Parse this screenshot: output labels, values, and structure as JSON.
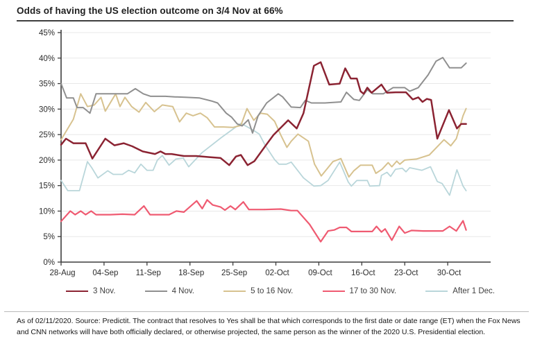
{
  "title": "Odds of having the US election outcome on 3/4 Nov at 66%",
  "footer": {
    "text": "As of 02/11/2020. Source: Predictit. The contract that resolves to Yes shall be that which corresponds to the first date or date range (ET) when the Fox News and CNN networks will have both officially declared, or otherwise projected, the same person as the winner of the 2020 U.S. Presidential election."
  },
  "chart_data": {
    "type": "line",
    "title": "Odds of having the US election outcome on 3/4 Nov at 66%",
    "xlabel": "",
    "ylabel": "",
    "grid": "horizontal",
    "legend_position": "bottom",
    "x_axis": {
      "day_range": [
        0,
        70
      ],
      "tick_days": [
        0,
        7,
        14,
        21,
        28,
        35,
        42,
        49,
        56,
        63
      ],
      "tick_labels": [
        "28-Aug",
        "04-Sep",
        "11-Sep",
        "18-Sep",
        "25-Sep",
        "02-Oct",
        "09-Oct",
        "16-Oct",
        "23-Oct",
        "30-Oct"
      ]
    },
    "y_axis": {
      "min": 0,
      "max": 45,
      "step": 5,
      "format": "percent"
    },
    "series": [
      {
        "id": "dec1",
        "label": "After 1 Dec.",
        "color": "#b9d6da",
        "width": 1.8,
        "points": [
          [
            0,
            16
          ],
          [
            1.1,
            14
          ],
          [
            3,
            14
          ],
          [
            4.3,
            19.7
          ],
          [
            5,
            18.5
          ],
          [
            6,
            16.5
          ],
          [
            7.6,
            17.9
          ],
          [
            8.5,
            17.2
          ],
          [
            10,
            17.2
          ],
          [
            11,
            18
          ],
          [
            12,
            17.5
          ],
          [
            13,
            19.2
          ],
          [
            14,
            18
          ],
          [
            15,
            18
          ],
          [
            15.7,
            20
          ],
          [
            16.5,
            20.9
          ],
          [
            17.6,
            19
          ],
          [
            18.7,
            20.2
          ],
          [
            19.9,
            20.4
          ],
          [
            20.8,
            18.7
          ],
          [
            23,
            21.5
          ],
          [
            26.1,
            24.4
          ],
          [
            29.3,
            27.2
          ],
          [
            31.4,
            25.8
          ],
          [
            32.3,
            25.1
          ],
          [
            33.3,
            22.8
          ],
          [
            34.8,
            20.1
          ],
          [
            35.5,
            19.2
          ],
          [
            36.7,
            19.2
          ],
          [
            37.5,
            19.6
          ],
          [
            39.5,
            16.5
          ],
          [
            41.2,
            14.9
          ],
          [
            42.3,
            15
          ],
          [
            43.5,
            16
          ],
          [
            45.4,
            19.6
          ],
          [
            46.8,
            15.7
          ],
          [
            47.3,
            14.9
          ],
          [
            48.2,
            16
          ],
          [
            49.9,
            16
          ],
          [
            50.3,
            14.9
          ],
          [
            51.9,
            15
          ],
          [
            52.2,
            17
          ],
          [
            53.1,
            17.6
          ],
          [
            53.7,
            16.8
          ],
          [
            54.5,
            18.2
          ],
          [
            55.6,
            18.4
          ],
          [
            56.2,
            17.7
          ],
          [
            56.8,
            18.5
          ],
          [
            58.8,
            18
          ],
          [
            60.2,
            18.7
          ],
          [
            61.3,
            15.8
          ],
          [
            62.1,
            15.4
          ],
          [
            63.3,
            13.1
          ],
          [
            64.5,
            18.1
          ],
          [
            65.5,
            14.9
          ],
          [
            66,
            14
          ]
        ]
      },
      {
        "id": "nov5_16",
        "label": "5 to 16 Nov.",
        "color": "#d7c28f",
        "width": 2,
        "points": [
          [
            0,
            24
          ],
          [
            2,
            28
          ],
          [
            3.2,
            33
          ],
          [
            4.3,
            30.5
          ],
          [
            5.4,
            30.8
          ],
          [
            6.5,
            32.3
          ],
          [
            7.2,
            29.6
          ],
          [
            8.9,
            33
          ],
          [
            9.6,
            30.5
          ],
          [
            10.4,
            32.3
          ],
          [
            11.5,
            30.5
          ],
          [
            12.7,
            29.4
          ],
          [
            13.8,
            31.3
          ],
          [
            15.2,
            29.5
          ],
          [
            16.5,
            30.8
          ],
          [
            18.2,
            30.5
          ],
          [
            19.3,
            27.5
          ],
          [
            20.4,
            29.2
          ],
          [
            21.5,
            28.7
          ],
          [
            22.7,
            29.2
          ],
          [
            23.8,
            28.3
          ],
          [
            25,
            26.5
          ],
          [
            26.5,
            26.5
          ],
          [
            28,
            26.4
          ],
          [
            29.3,
            26.8
          ],
          [
            30.3,
            30.1
          ],
          [
            31.4,
            27.8
          ],
          [
            32.5,
            29.2
          ],
          [
            33.6,
            29
          ],
          [
            34.8,
            27.6
          ],
          [
            35.8,
            24.9
          ],
          [
            36.8,
            22.5
          ],
          [
            37.5,
            23.7
          ],
          [
            38.6,
            25.1
          ],
          [
            40.3,
            23.7
          ],
          [
            41.3,
            19.2
          ],
          [
            42.4,
            16.9
          ],
          [
            44.3,
            19.7
          ],
          [
            45.6,
            20.3
          ],
          [
            46.9,
            16.7
          ],
          [
            47.7,
            17.9
          ],
          [
            48.8,
            19
          ],
          [
            50.7,
            19
          ],
          [
            51.3,
            17.4
          ],
          [
            52.3,
            18.2
          ],
          [
            53.3,
            19.5
          ],
          [
            53.9,
            18.7
          ],
          [
            54.7,
            19.8
          ],
          [
            55.2,
            19.2
          ],
          [
            56,
            20
          ],
          [
            57.9,
            20.2
          ],
          [
            60,
            21
          ],
          [
            62.4,
            24
          ],
          [
            63.5,
            22.8
          ],
          [
            64.4,
            24.2
          ],
          [
            65.5,
            28.7
          ],
          [
            66,
            30.1
          ]
        ]
      },
      {
        "id": "nov4",
        "label": "4 Nov.",
        "color": "#8f8f8f",
        "width": 2,
        "points": [
          [
            0,
            35
          ],
          [
            0.9,
            32.2
          ],
          [
            2,
            32.2
          ],
          [
            2.6,
            30.3
          ],
          [
            3.6,
            30.3
          ],
          [
            4.7,
            29.2
          ],
          [
            5.7,
            33
          ],
          [
            8,
            33
          ],
          [
            10.8,
            33
          ],
          [
            12.1,
            34
          ],
          [
            13.4,
            33
          ],
          [
            14.6,
            32.5
          ],
          [
            17,
            32.5
          ],
          [
            18.5,
            32.4
          ],
          [
            20.5,
            32.3
          ],
          [
            22.5,
            32.2
          ],
          [
            24.5,
            31.6
          ],
          [
            25.5,
            31.2
          ],
          [
            26.9,
            29.2
          ],
          [
            27.8,
            28.4
          ],
          [
            28.7,
            27.1
          ],
          [
            29.5,
            26.7
          ],
          [
            30.5,
            27.9
          ],
          [
            31.2,
            25.3
          ],
          [
            32.1,
            28.7
          ],
          [
            33.5,
            31.2
          ],
          [
            35.4,
            33
          ],
          [
            36.1,
            32.4
          ],
          [
            37.5,
            30.4
          ],
          [
            39,
            30.3
          ],
          [
            39.8,
            31.7
          ],
          [
            40.8,
            31.2
          ],
          [
            43,
            31.2
          ],
          [
            45.6,
            31.4
          ],
          [
            46.5,
            33.3
          ],
          [
            47.7,
            31.9
          ],
          [
            48.6,
            31.7
          ],
          [
            49.9,
            33.8
          ],
          [
            50.8,
            33
          ],
          [
            52.5,
            33
          ],
          [
            54.1,
            34.2
          ],
          [
            56,
            34.2
          ],
          [
            56.8,
            33.5
          ],
          [
            58.2,
            34.2
          ],
          [
            59.8,
            36.7
          ],
          [
            61.1,
            39.4
          ],
          [
            62.2,
            40.1
          ],
          [
            63.3,
            38.1
          ],
          [
            65.2,
            38.1
          ],
          [
            66,
            39
          ]
        ]
      },
      {
        "id": "nov17_30",
        "label": "17 to 30 Nov.",
        "color": "#ef5a71",
        "width": 2.2,
        "points": [
          [
            0,
            8
          ],
          [
            1.5,
            10
          ],
          [
            2.3,
            9.3
          ],
          [
            3.2,
            10
          ],
          [
            4,
            9.3
          ],
          [
            4.9,
            10
          ],
          [
            5.7,
            9.3
          ],
          [
            8,
            9.3
          ],
          [
            10,
            9.4
          ],
          [
            12,
            9.3
          ],
          [
            13.5,
            11
          ],
          [
            14.5,
            9.3
          ],
          [
            16,
            9.3
          ],
          [
            17.6,
            9.3
          ],
          [
            18.8,
            10
          ],
          [
            20,
            9.8
          ],
          [
            22.1,
            12
          ],
          [
            23,
            10.5
          ],
          [
            23.8,
            12.2
          ],
          [
            24.7,
            11.2
          ],
          [
            26,
            10.8
          ],
          [
            26.7,
            10.2
          ],
          [
            27.6,
            11
          ],
          [
            28.4,
            10.3
          ],
          [
            29.7,
            11.8
          ],
          [
            30.6,
            10.3
          ],
          [
            33,
            10.3
          ],
          [
            35.8,
            10.4
          ],
          [
            37.5,
            10.1
          ],
          [
            38.5,
            10.1
          ],
          [
            40.5,
            7.4
          ],
          [
            42.3,
            4
          ],
          [
            43.5,
            6.1
          ],
          [
            44.5,
            6.3
          ],
          [
            45.4,
            6.8
          ],
          [
            46.5,
            6.8
          ],
          [
            47.3,
            6
          ],
          [
            50.7,
            6
          ],
          [
            51.4,
            7
          ],
          [
            52.2,
            5.9
          ],
          [
            52.8,
            6.5
          ],
          [
            53.9,
            4.3
          ],
          [
            55.1,
            7
          ],
          [
            56,
            5.7
          ],
          [
            57.1,
            6.2
          ],
          [
            59,
            6.1
          ],
          [
            62.2,
            6.1
          ],
          [
            63.3,
            7
          ],
          [
            64.4,
            6.1
          ],
          [
            65.5,
            8.1
          ],
          [
            66,
            6.3
          ]
        ]
      },
      {
        "id": "nov3",
        "label": "3 Nov.",
        "color": "#8b2332",
        "width": 2.5,
        "points": [
          [
            0,
            23
          ],
          [
            0.8,
            24.2
          ],
          [
            2,
            23.3
          ],
          [
            4,
            23.3
          ],
          [
            5.1,
            20.3
          ],
          [
            7.2,
            24.2
          ],
          [
            8.7,
            22.9
          ],
          [
            10.2,
            23.3
          ],
          [
            11.6,
            22.7
          ],
          [
            13.3,
            21.7
          ],
          [
            15.3,
            21.2
          ],
          [
            16.2,
            21.7
          ],
          [
            17,
            21.2
          ],
          [
            18,
            21.2
          ],
          [
            20,
            20.8
          ],
          [
            22,
            20.8
          ],
          [
            24,
            20.6
          ],
          [
            26,
            20.4
          ],
          [
            27.4,
            19
          ],
          [
            28.5,
            20.7
          ],
          [
            29.3,
            21
          ],
          [
            30.4,
            19
          ],
          [
            31.5,
            19.8
          ],
          [
            33.3,
            22.8
          ],
          [
            34.6,
            24.9
          ],
          [
            37,
            27.8
          ],
          [
            38.4,
            26.2
          ],
          [
            39.5,
            29.2
          ],
          [
            41.2,
            38.5
          ],
          [
            42.3,
            39.2
          ],
          [
            43.7,
            34.8
          ],
          [
            45.4,
            35
          ],
          [
            46.3,
            38
          ],
          [
            47.2,
            36
          ],
          [
            48.2,
            36
          ],
          [
            48.8,
            33.5
          ],
          [
            49.3,
            33
          ],
          [
            49.9,
            34.2
          ],
          [
            50.6,
            33.2
          ],
          [
            52.2,
            34.8
          ],
          [
            53.1,
            33.2
          ],
          [
            54.5,
            33.3
          ],
          [
            56.2,
            33.3
          ],
          [
            57.3,
            31.9
          ],
          [
            58.2,
            32.3
          ],
          [
            58.9,
            31.4
          ],
          [
            59.6,
            32
          ],
          [
            60.3,
            31.8
          ],
          [
            61.3,
            24.2
          ],
          [
            63.2,
            29.8
          ],
          [
            64.5,
            26.2
          ],
          [
            65.2,
            27.1
          ],
          [
            66,
            27.1
          ]
        ]
      }
    ],
    "legend_order": [
      "nov3",
      "nov4",
      "nov5_16",
      "nov17_30",
      "dec1"
    ]
  }
}
